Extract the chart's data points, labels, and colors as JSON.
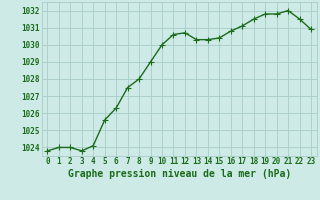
{
  "x": [
    0,
    1,
    2,
    3,
    4,
    5,
    6,
    7,
    8,
    9,
    10,
    11,
    12,
    13,
    14,
    15,
    16,
    17,
    18,
    19,
    20,
    21,
    22,
    23
  ],
  "y": [
    1023.8,
    1024.0,
    1024.0,
    1023.8,
    1024.1,
    1025.6,
    1026.3,
    1027.5,
    1028.0,
    1029.0,
    1030.0,
    1030.6,
    1030.7,
    1030.3,
    1030.3,
    1030.4,
    1030.8,
    1031.1,
    1031.5,
    1031.8,
    1031.8,
    1032.0,
    1031.5,
    1030.9
  ],
  "line_color": "#1a6b1a",
  "marker_color": "#1a6b1a",
  "bg_color": "#cdeae6",
  "grid_color": "#a8ccc8",
  "tick_color": "#1a6b1a",
  "label_color": "#1a6b1a",
  "xlabel": "Graphe pression niveau de la mer (hPa)",
  "ylim": [
    1023.5,
    1032.5
  ],
  "yticks": [
    1024,
    1025,
    1026,
    1027,
    1028,
    1029,
    1030,
    1031,
    1032
  ],
  "xticks": [
    0,
    1,
    2,
    3,
    4,
    5,
    6,
    7,
    8,
    9,
    10,
    11,
    12,
    13,
    14,
    15,
    16,
    17,
    18,
    19,
    20,
    21,
    22,
    23
  ],
  "marker_size": 2.5,
  "line_width": 1.0,
  "tick_fontsize": 5.5,
  "xlabel_fontsize": 7.0
}
